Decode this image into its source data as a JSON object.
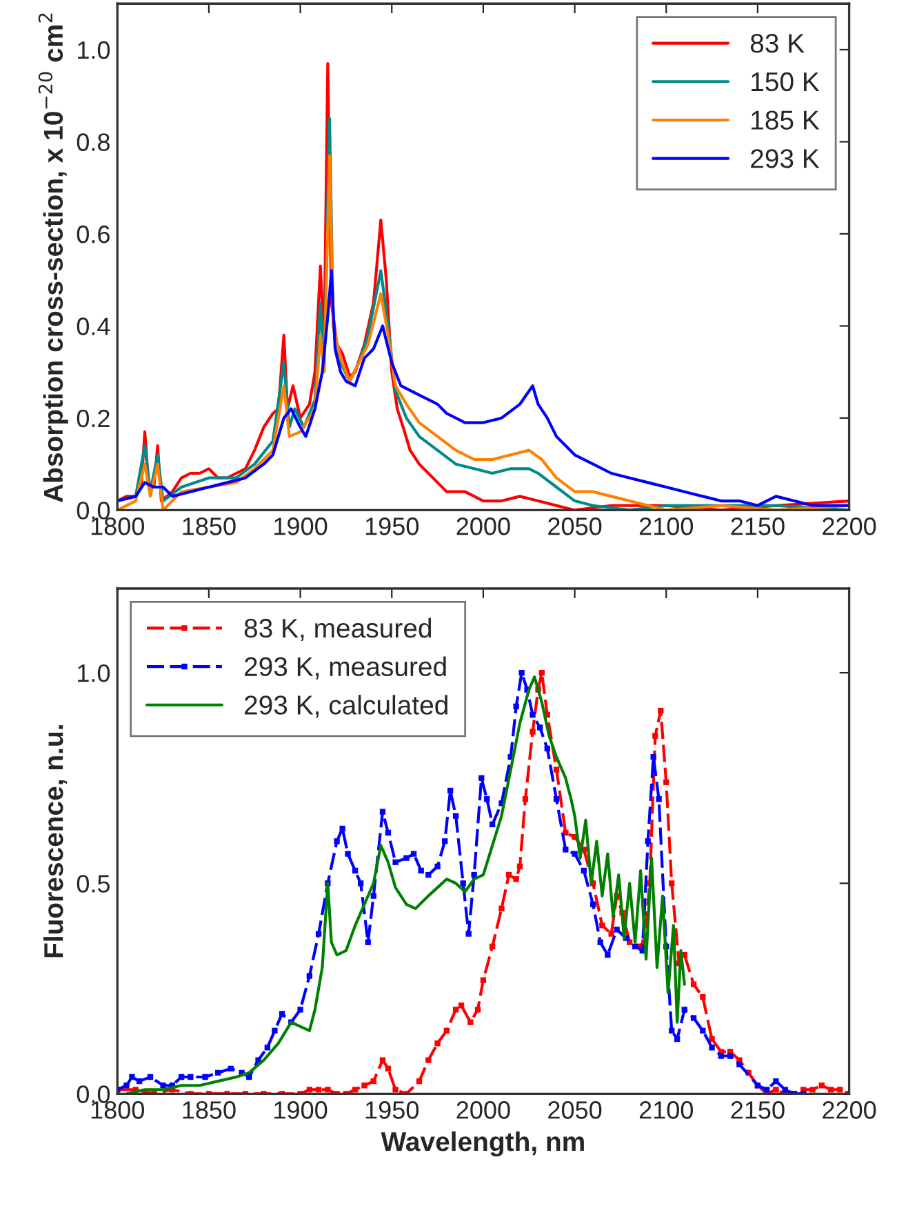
{
  "chart_data": [
    {
      "type": "line",
      "ylabel": "Absorption cross-section, x 10$^{−20}$ cm$^{2}$",
      "xlim": [
        1800,
        2200
      ],
      "xticks": [
        1800,
        1850,
        1900,
        1950,
        2000,
        2050,
        2100,
        2150,
        2200
      ],
      "ylim": [
        0,
        1.1
      ],
      "yticks": [
        {
          "value": 0,
          "label": "0.0"
        },
        {
          "value": 0.2,
          "label": "0.2"
        },
        {
          "value": 0.4,
          "label": "0.4"
        },
        {
          "value": 0.6,
          "label": "0.6"
        },
        {
          "value": 0.8,
          "label": "0.8"
        },
        {
          "value": 1,
          "label": "1.0"
        }
      ],
      "legend": "top right",
      "line_style": "solid",
      "series": [
        {
          "name": "83 K",
          "color": "#ff0000",
          "x": [
            1800,
            1805,
            1810,
            1813,
            1815,
            1817,
            1820,
            1822,
            1824,
            1830,
            1835,
            1840,
            1845,
            1850,
            1855,
            1860,
            1865,
            1870,
            1875,
            1880,
            1885,
            1888,
            1891,
            1893,
            1896,
            1900,
            1905,
            1908,
            1911,
            1913,
            1915,
            1917,
            1920,
            1923,
            1927,
            1930,
            1935,
            1940,
            1944,
            1947,
            1950,
            1953,
            1957,
            1960,
            1965,
            1970,
            1975,
            1980,
            1990,
            2000,
            2010,
            2020,
            2030,
            2040,
            2050,
            2070,
            2100,
            2130,
            2160,
            2200
          ],
          "values": [
            0.02,
            0.03,
            0.03,
            0.05,
            0.17,
            0.06,
            0.05,
            0.14,
            0.02,
            0.04,
            0.07,
            0.08,
            0.08,
            0.09,
            0.07,
            0.07,
            0.08,
            0.09,
            0.13,
            0.18,
            0.21,
            0.22,
            0.38,
            0.22,
            0.27,
            0.2,
            0.23,
            0.3,
            0.53,
            0.35,
            0.97,
            0.45,
            0.36,
            0.34,
            0.29,
            0.3,
            0.36,
            0.45,
            0.63,
            0.5,
            0.3,
            0.22,
            0.17,
            0.13,
            0.1,
            0.08,
            0.06,
            0.04,
            0.04,
            0.02,
            0.02,
            0.03,
            0.02,
            0.01,
            0.0,
            0.01,
            0.01,
            0.0,
            0.01,
            0.02
          ]
        },
        {
          "name": "150 K",
          "color": "#008b8b",
          "x": [
            1800,
            1810,
            1815,
            1818,
            1822,
            1825,
            1835,
            1850,
            1865,
            1875,
            1885,
            1891,
            1894,
            1897,
            1902,
            1908,
            1911,
            1913,
            1916,
            1918,
            1922,
            1927,
            1932,
            1937,
            1944,
            1948,
            1952,
            1958,
            1965,
            1975,
            1985,
            1995,
            2005,
            2015,
            2025,
            2030,
            2040,
            2050,
            2060,
            2080,
            2100,
            2130,
            2160,
            2200
          ],
          "values": [
            0.02,
            0.03,
            0.14,
            0.04,
            0.12,
            0.02,
            0.05,
            0.07,
            0.07,
            0.1,
            0.15,
            0.32,
            0.18,
            0.22,
            0.18,
            0.24,
            0.45,
            0.3,
            0.85,
            0.4,
            0.32,
            0.28,
            0.32,
            0.38,
            0.52,
            0.4,
            0.26,
            0.2,
            0.16,
            0.13,
            0.1,
            0.09,
            0.08,
            0.09,
            0.09,
            0.08,
            0.05,
            0.02,
            0.01,
            0.0,
            0.01,
            0.01,
            0.01,
            0.0
          ]
        },
        {
          "name": "185 K",
          "color": "#ff8000",
          "x": [
            1800,
            1810,
            1815,
            1818,
            1822,
            1825,
            1835,
            1850,
            1865,
            1875,
            1885,
            1891,
            1894,
            1900,
            1908,
            1911,
            1913,
            1916,
            1918,
            1922,
            1927,
            1932,
            1937,
            1944,
            1948,
            1952,
            1958,
            1965,
            1975,
            1985,
            1995,
            2005,
            2015,
            2025,
            2032,
            2040,
            2050,
            2060,
            2070,
            2080,
            2090,
            2100,
            2130,
            2160,
            2200
          ],
          "values": [
            0.0,
            0.02,
            0.1,
            0.03,
            0.1,
            0.0,
            0.04,
            0.05,
            0.06,
            0.09,
            0.13,
            0.27,
            0.16,
            0.17,
            0.22,
            0.38,
            0.3,
            0.77,
            0.4,
            0.33,
            0.28,
            0.32,
            0.36,
            0.47,
            0.38,
            0.27,
            0.23,
            0.19,
            0.16,
            0.13,
            0.11,
            0.11,
            0.12,
            0.13,
            0.11,
            0.07,
            0.04,
            0.04,
            0.03,
            0.02,
            0.01,
            0.0,
            0.01,
            0.0,
            0.01
          ]
        },
        {
          "name": "293 K",
          "color": "#0000ff",
          "x": [
            1800,
            1810,
            1815,
            1820,
            1825,
            1830,
            1840,
            1850,
            1860,
            1870,
            1880,
            1885,
            1891,
            1895,
            1900,
            1903,
            1908,
            1912,
            1915,
            1917,
            1919,
            1922,
            1925,
            1930,
            1935,
            1940,
            1945,
            1950,
            1955,
            1960,
            1965,
            1970,
            1975,
            1980,
            1985,
            1990,
            2000,
            2010,
            2020,
            2027,
            2030,
            2035,
            2040,
            2050,
            2060,
            2070,
            2080,
            2090,
            2100,
            2110,
            2120,
            2130,
            2140,
            2150,
            2160,
            2170,
            2180,
            2190,
            2200
          ],
          "values": [
            0.02,
            0.03,
            0.06,
            0.05,
            0.05,
            0.03,
            0.04,
            0.05,
            0.06,
            0.07,
            0.1,
            0.12,
            0.2,
            0.22,
            0.18,
            0.16,
            0.22,
            0.3,
            0.42,
            0.52,
            0.35,
            0.3,
            0.28,
            0.27,
            0.33,
            0.35,
            0.4,
            0.32,
            0.27,
            0.26,
            0.25,
            0.24,
            0.23,
            0.21,
            0.2,
            0.19,
            0.19,
            0.2,
            0.23,
            0.27,
            0.23,
            0.2,
            0.16,
            0.12,
            0.1,
            0.08,
            0.07,
            0.06,
            0.05,
            0.04,
            0.03,
            0.02,
            0.02,
            0.01,
            0.03,
            0.02,
            0.01,
            0.01,
            0.01
          ]
        }
      ]
    },
    {
      "type": "line",
      "xlabel": "Wavelength, nm",
      "ylabel": "Fluorescence, n.u.",
      "xlim": [
        1800,
        2200
      ],
      "xticks": [
        1800,
        1850,
        1900,
        1950,
        2000,
        2050,
        2100,
        2150,
        2200
      ],
      "ylim": [
        0,
        1.2
      ],
      "yticks": [
        {
          "value": 0,
          "label": "0.0"
        },
        {
          "value": 0.5,
          "label": "0.5"
        },
        {
          "value": 1,
          "label": "1.0"
        }
      ],
      "legend": "top left",
      "series": [
        {
          "name": "83 K, measured",
          "color": "#ff0000",
          "line_style": "dashed",
          "marker": "square",
          "x": [
            1800,
            1810,
            1820,
            1830,
            1840,
            1850,
            1860,
            1870,
            1880,
            1890,
            1900,
            1905,
            1910,
            1915,
            1920,
            1925,
            1930,
            1935,
            1940,
            1945,
            1948,
            1952,
            1958,
            1965,
            1970,
            1975,
            1980,
            1985,
            1988,
            1993,
            1997,
            2000,
            2005,
            2010,
            2014,
            2018,
            2020,
            2023,
            2027,
            2030,
            2032,
            2035,
            2040,
            2045,
            2050,
            2055,
            2060,
            2065,
            2070,
            2073,
            2076,
            2080,
            2085,
            2088,
            2091,
            2094,
            2097,
            2100,
            2103,
            2107,
            2110,
            2115,
            2120,
            2125,
            2130,
            2135,
            2140,
            2145,
            2150,
            2155,
            2160,
            2165,
            2170,
            2175,
            2180,
            2185,
            2190,
            2195,
            2200
          ],
          "values": [
            0.01,
            0.01,
            0.0,
            0.01,
            0.0,
            0.0,
            0.0,
            0.0,
            0.0,
            0.0,
            0.0,
            0.01,
            0.01,
            0.01,
            0.0,
            0.0,
            0.01,
            0.02,
            0.03,
            0.08,
            0.06,
            0.01,
            0.0,
            0.03,
            0.08,
            0.12,
            0.15,
            0.2,
            0.21,
            0.17,
            0.2,
            0.27,
            0.35,
            0.44,
            0.52,
            0.51,
            0.54,
            0.7,
            0.86,
            0.96,
            1.0,
            0.9,
            0.77,
            0.62,
            0.61,
            0.58,
            0.5,
            0.4,
            0.38,
            0.47,
            0.43,
            0.36,
            0.35,
            0.36,
            0.5,
            0.85,
            0.91,
            0.74,
            0.5,
            0.31,
            0.33,
            0.26,
            0.23,
            0.13,
            0.1,
            0.1,
            0.08,
            0.05,
            0.02,
            0.0,
            0.01,
            0.0,
            0.0,
            0.01,
            0.01,
            0.02,
            0.01,
            0.01,
            0.0
          ]
        },
        {
          "name": "293 K, measured",
          "color": "#0000ff",
          "line_style": "dashed",
          "marker": "square",
          "x": [
            1800,
            1805,
            1808,
            1812,
            1818,
            1825,
            1830,
            1835,
            1840,
            1848,
            1855,
            1862,
            1868,
            1872,
            1877,
            1882,
            1886,
            1890,
            1895,
            1900,
            1905,
            1910,
            1915,
            1920,
            1923,
            1926,
            1930,
            1933,
            1937,
            1940,
            1945,
            1948,
            1952,
            1958,
            1962,
            1966,
            1970,
            1975,
            1979,
            1982,
            1985,
            1989,
            1992,
            1995,
            1999,
            2002,
            2005,
            2010,
            2015,
            2018,
            2021,
            2024,
            2027,
            2031,
            2035,
            2040,
            2045,
            2050,
            2055,
            2060,
            2064,
            2068,
            2073,
            2078,
            2083,
            2087,
            2090,
            2093,
            2096,
            2100,
            2103,
            2106,
            2110,
            2115,
            2120,
            2125,
            2130,
            2135,
            2140,
            2150,
            2155,
            2160,
            2165,
            2170,
            2175
          ],
          "values": [
            0.01,
            0.02,
            0.04,
            0.03,
            0.04,
            0.02,
            0.02,
            0.04,
            0.04,
            0.04,
            0.05,
            0.06,
            0.05,
            0.04,
            0.08,
            0.11,
            0.15,
            0.19,
            0.17,
            0.2,
            0.28,
            0.38,
            0.5,
            0.6,
            0.63,
            0.57,
            0.53,
            0.5,
            0.36,
            0.47,
            0.67,
            0.62,
            0.55,
            0.56,
            0.57,
            0.53,
            0.52,
            0.54,
            0.6,
            0.72,
            0.66,
            0.5,
            0.38,
            0.52,
            0.75,
            0.7,
            0.64,
            0.69,
            0.8,
            0.92,
            1.0,
            0.96,
            0.9,
            0.87,
            0.82,
            0.7,
            0.58,
            0.57,
            0.53,
            0.45,
            0.36,
            0.33,
            0.39,
            0.37,
            0.35,
            0.34,
            0.6,
            0.8,
            0.7,
            0.35,
            0.15,
            0.13,
            0.2,
            0.18,
            0.15,
            0.11,
            0.09,
            0.09,
            0.07,
            0.02,
            0.01,
            0.03,
            0.01,
            0.0,
            0.0
          ]
        },
        {
          "name": "293 K, calculated",
          "color": "#008000",
          "line_style": "solid",
          "marker": "none",
          "x": [
            1805,
            1815,
            1825,
            1835,
            1845,
            1855,
            1865,
            1872,
            1880,
            1888,
            1895,
            1900,
            1905,
            1908,
            1912,
            1915,
            1917,
            1920,
            1925,
            1930,
            1935,
            1940,
            1944,
            1948,
            1952,
            1958,
            1963,
            1970,
            1975,
            1980,
            1985,
            1990,
            1995,
            2000,
            2005,
            2010,
            2015,
            2020,
            2025,
            2028,
            2032,
            2036,
            2040,
            2045,
            2048,
            2050,
            2053,
            2056,
            2059,
            2062,
            2065,
            2068,
            2071,
            2074,
            2077,
            2080,
            2083,
            2086,
            2089,
            2092,
            2095,
            2098,
            2101,
            2104,
            2106,
            2108,
            2110
          ],
          "values": [
            0.0,
            0.01,
            0.01,
            0.02,
            0.02,
            0.03,
            0.04,
            0.05,
            0.08,
            0.12,
            0.17,
            0.16,
            0.15,
            0.2,
            0.3,
            0.5,
            0.36,
            0.33,
            0.34,
            0.4,
            0.45,
            0.5,
            0.59,
            0.55,
            0.49,
            0.45,
            0.44,
            0.47,
            0.49,
            0.51,
            0.5,
            0.48,
            0.51,
            0.52,
            0.59,
            0.66,
            0.77,
            0.88,
            0.96,
            0.99,
            0.93,
            0.85,
            0.8,
            0.75,
            0.7,
            0.66,
            0.56,
            0.65,
            0.5,
            0.6,
            0.47,
            0.57,
            0.42,
            0.52,
            0.37,
            0.5,
            0.36,
            0.53,
            0.32,
            0.56,
            0.3,
            0.47,
            0.24,
            0.4,
            0.17,
            0.34,
            0.26
          ]
        }
      ]
    }
  ]
}
